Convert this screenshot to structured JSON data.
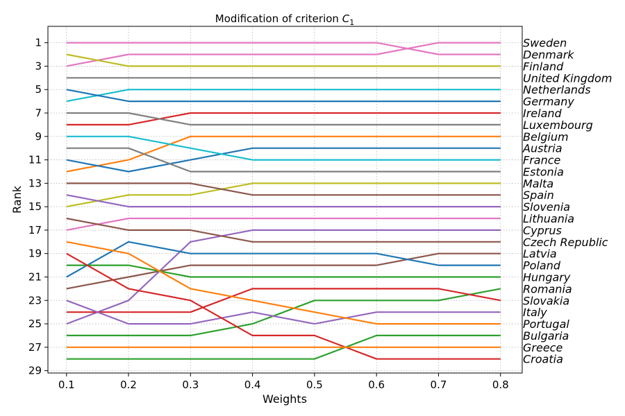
{
  "chart_data": {
    "type": "line",
    "title_prefix": "Modification of criterion ",
    "title_symbol": "C",
    "title_subscript": "1",
    "xlabel": "Weights",
    "ylabel": "Rank",
    "x": [
      0.1,
      0.2,
      0.3,
      0.4,
      0.5,
      0.6,
      0.7,
      0.8
    ],
    "x_tick_labels": [
      "0.1",
      "0.2",
      "0.3",
      "0.4",
      "0.5",
      "0.6",
      "0.7",
      "0.8"
    ],
    "y_ticks": [
      1,
      3,
      5,
      7,
      9,
      11,
      13,
      15,
      17,
      19,
      21,
      23,
      25,
      27,
      29
    ],
    "y_tick_labels": [
      "1",
      "3",
      "5",
      "7",
      "9",
      "11",
      "13",
      "15",
      "17",
      "19",
      "21",
      "23",
      "25",
      "27",
      "29"
    ],
    "xlim": [
      0.07,
      0.835
    ],
    "ylim": [
      29.2,
      -0.4
    ],
    "y_inverted": true,
    "grid": true,
    "right_labels": [
      "Sweden",
      "Denmark",
      "Finland",
      "United Kingdom",
      "Netherlands",
      "Germany",
      "Ireland",
      "Luxembourg",
      "Belgium",
      "Austria",
      "France",
      "Estonia",
      "Malta",
      "Spain",
      "Slovenia",
      "Lithuania",
      "Cyprus",
      "Czech Republic",
      "Latvia",
      "Poland",
      "Hungary",
      "Romania",
      "Slovakia",
      "Italy",
      "Portugal",
      "Bulgaria",
      "Greece",
      "Croatia"
    ],
    "series": [
      {
        "color": "#e377c2",
        "values": [
          1,
          1,
          1,
          1,
          1,
          1,
          2,
          2
        ]
      },
      {
        "color": "#e377c2",
        "values": [
          3,
          2,
          2,
          2,
          2,
          2,
          1,
          1
        ]
      },
      {
        "color": "#bcbd22",
        "values": [
          2,
          3,
          3,
          3,
          3,
          3,
          3,
          3
        ]
      },
      {
        "color": "#7f7f7f",
        "values": [
          4,
          4,
          4,
          4,
          4,
          4,
          4,
          4
        ]
      },
      {
        "color": "#17becf",
        "values": [
          6,
          5,
          5,
          5,
          5,
          5,
          5,
          5
        ]
      },
      {
        "color": "#1f77b4",
        "values": [
          5,
          6,
          6,
          6,
          6,
          6,
          6,
          6
        ]
      },
      {
        "color": "#d62728",
        "values": [
          8,
          8,
          7,
          7,
          7,
          7,
          7,
          7
        ]
      },
      {
        "color": "#7f7f7f",
        "values": [
          7,
          7,
          8,
          8,
          8,
          8,
          8,
          8
        ]
      },
      {
        "color": "#ff7f0e",
        "values": [
          12,
          11,
          9,
          9,
          9,
          9,
          9,
          9
        ]
      },
      {
        "color": "#1f77b4",
        "values": [
          11,
          12,
          11,
          10,
          10,
          10,
          10,
          10
        ]
      },
      {
        "color": "#17becf",
        "values": [
          9,
          9,
          10,
          11,
          11,
          11,
          11,
          11
        ]
      },
      {
        "color": "#7f7f7f",
        "values": [
          10,
          10,
          12,
          12,
          12,
          12,
          12,
          12
        ]
      },
      {
        "color": "#bcbd22",
        "values": [
          15,
          14,
          14,
          13,
          13,
          13,
          13,
          13
        ]
      },
      {
        "color": "#8c564b",
        "values": [
          13,
          13,
          13,
          14,
          14,
          14,
          14,
          14
        ]
      },
      {
        "color": "#9467bd",
        "values": [
          14,
          15,
          15,
          15,
          15,
          15,
          15,
          15
        ]
      },
      {
        "color": "#e377c2",
        "values": [
          17,
          16,
          16,
          16,
          16,
          16,
          16,
          16
        ]
      },
      {
        "color": "#9467bd",
        "values": [
          25,
          23,
          18,
          17,
          17,
          17,
          17,
          17
        ]
      },
      {
        "color": "#8c564b",
        "values": [
          16,
          17,
          17,
          18,
          18,
          18,
          18,
          18
        ]
      },
      {
        "color": "#8c564b",
        "values": [
          22,
          21,
          20,
          20,
          20,
          20,
          19,
          19
        ]
      },
      {
        "color": "#1f77b4",
        "values": [
          21,
          18,
          19,
          19,
          19,
          19,
          20,
          20
        ]
      },
      {
        "color": "#2ca02c",
        "values": [
          20,
          20,
          21,
          21,
          21,
          21,
          21,
          21
        ]
      },
      {
        "color": "#2ca02c",
        "values": [
          26,
          26,
          26,
          25,
          23,
          23,
          23,
          22
        ]
      },
      {
        "color": "#d62728",
        "values": [
          24,
          24,
          24,
          22,
          22,
          22,
          22,
          23
        ]
      },
      {
        "color": "#9467bd",
        "values": [
          23,
          25,
          25,
          24,
          25,
          24,
          24,
          24
        ]
      },
      {
        "color": "#ff7f0e",
        "values": [
          18,
          19,
          22,
          23,
          24,
          25,
          25,
          25
        ]
      },
      {
        "color": "#d62728",
        "values": [
          19,
          22,
          23,
          26,
          26,
          28,
          28,
          28
        ]
      },
      {
        "color": "#2ca02c",
        "values": [
          28,
          28,
          28,
          28,
          28,
          26,
          26,
          26
        ]
      },
      {
        "color": "#ff7f0e",
        "values": [
          27,
          27,
          27,
          27,
          27,
          27,
          27,
          27
        ]
      }
    ]
  }
}
